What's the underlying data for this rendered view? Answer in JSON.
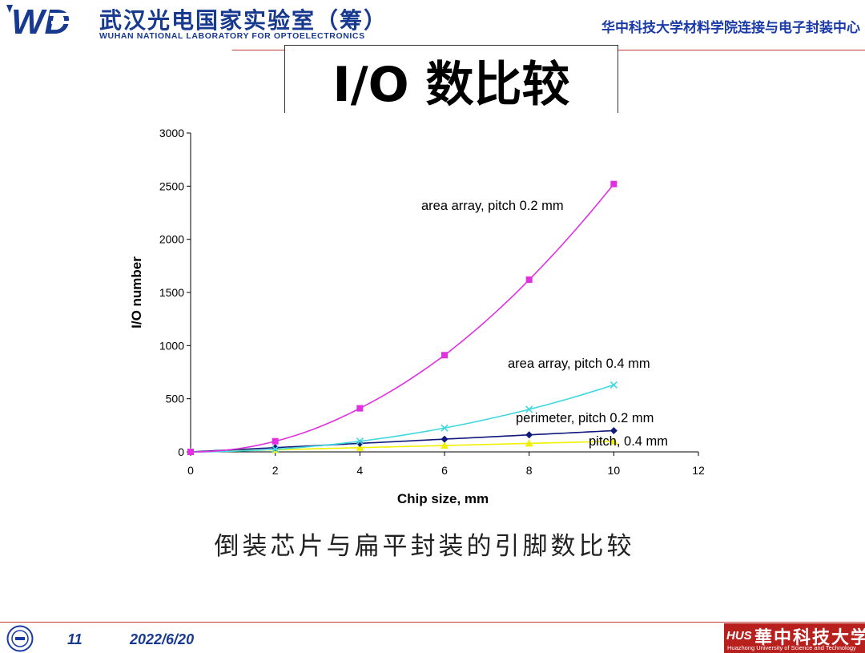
{
  "header": {
    "logo_text": "WD",
    "lab_name_cn": "武汉光电国家实验室（筹）",
    "lab_name_en": "WUHAN NATIONAL LABORATORY FOR OPTOELECTRONICS",
    "department": "华中科技大学材料学院连接与电子封装中心"
  },
  "slide": {
    "title": "I/O 数比较",
    "caption": "倒装芯片与扁平封装的引脚数比较"
  },
  "footer": {
    "page_number": "11",
    "date": "2022/6/20",
    "university_cn": "華中科技大学",
    "university_en": "Huazhong University of Science and Technology"
  },
  "colors": {
    "brand_blue": "#17398f",
    "rule_red": "#c23a3a",
    "badge_red": "#b8201e"
  },
  "chart_data": {
    "type": "line",
    "title": "",
    "xlabel": "Chip size, mm",
    "ylabel": "I/O number",
    "xlim": [
      0,
      12
    ],
    "ylim": [
      0,
      3000
    ],
    "x_ticks": [
      "0",
      "2",
      "4",
      "6",
      "8",
      "10",
      "12"
    ],
    "y_ticks": [
      "0",
      "500",
      "1000",
      "1500",
      "2000",
      "2500",
      "3000"
    ],
    "grid": false,
    "legend": "none",
    "series": [
      {
        "name": "area array, pitch 0.2 mm",
        "color": "#e030e0",
        "marker": "square",
        "x": [
          0,
          2,
          4,
          6,
          8,
          10
        ],
        "y": [
          0,
          100,
          410,
          910,
          1620,
          2520
        ]
      },
      {
        "name": "area array, pitch 0.4 mm",
        "color": "#40d8e0",
        "marker": "x",
        "x": [
          0,
          2,
          4,
          6,
          8,
          10
        ],
        "y": [
          0,
          25,
          100,
          225,
          400,
          630
        ]
      },
      {
        "name": "perimeter, pitch 0.2 mm",
        "color": "#101a7a",
        "marker": "diamond",
        "x": [
          0,
          2,
          4,
          6,
          8,
          10
        ],
        "y": [
          0,
          40,
          80,
          120,
          160,
          200
        ]
      },
      {
        "name": "pitch, 0.4 mm",
        "color": "#f0f000",
        "marker": "triangle",
        "x": [
          0,
          2,
          4,
          6,
          8,
          10
        ],
        "y": [
          0,
          20,
          40,
          60,
          80,
          100
        ]
      }
    ]
  }
}
